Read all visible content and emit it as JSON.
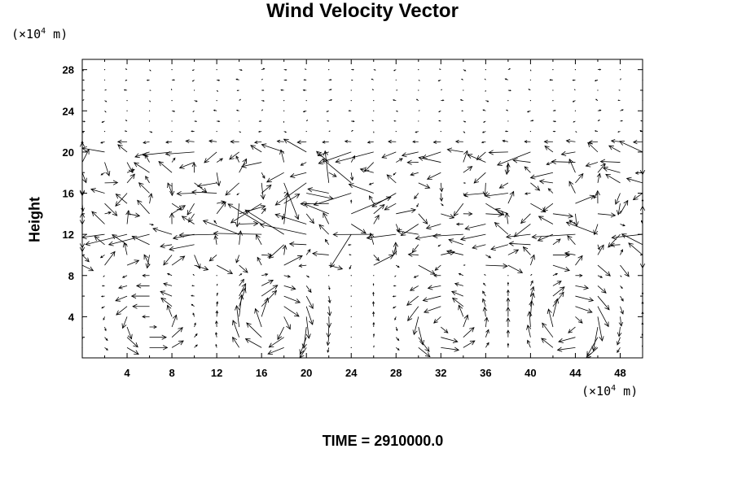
{
  "chart_data": {
    "type": "vector-field",
    "title": "Wind Velocity Vector",
    "ylabel": "Height",
    "xlabel": "",
    "y_unit": {
      "prefix": "(×10",
      "exponent": "4",
      "suffix": " m)"
    },
    "x_unit": {
      "prefix": "(×10",
      "exponent": "4",
      "suffix": " m)"
    },
    "xlim": [
      0,
      50
    ],
    "ylim": [
      0,
      29
    ],
    "x_ticks": [
      4,
      8,
      12,
      16,
      20,
      24,
      28,
      32,
      36,
      40,
      44,
      48
    ],
    "y_ticks": [
      4,
      8,
      12,
      16,
      20,
      24,
      28
    ],
    "grid": false,
    "vector_grid": {
      "x_spacing": 2,
      "y_spacing": 1
    },
    "features": {
      "surface_vortex_centers_x": [
        6,
        17,
        32,
        44
      ],
      "surface_vortex_top": 8,
      "jet_levels": [
        12,
        16,
        20
      ],
      "turbulent_band": [
        10,
        20
      ],
      "quiet_above": 21
    },
    "footer_label": "TIME = 2910000.0"
  }
}
